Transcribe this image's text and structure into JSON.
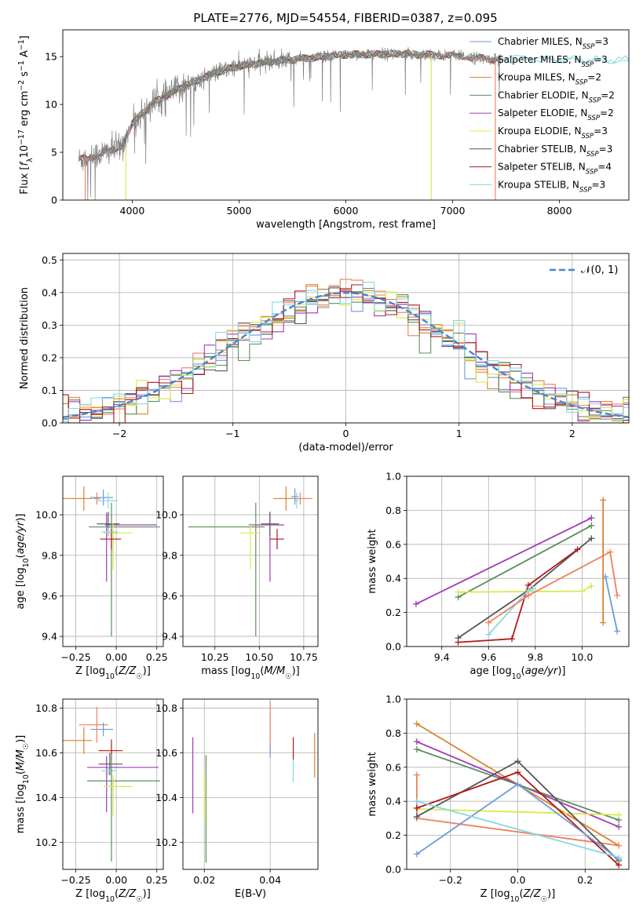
{
  "figure": {
    "title": "PLATE=2776, MJD=54554, FIBERID=0387, z=0.095"
  },
  "colors": {
    "Chabrier MILES": "#6f9bd8",
    "Salpeter MILES": "#f07f5a",
    "Kroupa MILES": "#d9822b",
    "Chabrier ELODIE": "#5b8f5b",
    "Salpeter ELODIE": "#a03ab8",
    "Kroupa ELODIE": "#d8e84a",
    "Chabrier STELIB": "#555555",
    "Salpeter STELIB": "#b01818",
    "Kroupa STELIB": "#86d8e6",
    "data": "#808080"
  },
  "chart_data": [
    {
      "id": "spectrum",
      "type": "line",
      "xlabel": "wavelength [Angstrom, rest frame]",
      "ylabel": "Flux [f_λ10^-17 erg cm^-2 s^-1 A^-1]",
      "xlim": [
        3350,
        8650
      ],
      "ylim": [
        0,
        17.8
      ],
      "xticks": [
        4000,
        5000,
        6000,
        7000,
        8000
      ],
      "yticks": [
        0,
        5,
        10,
        15
      ],
      "grid": false,
      "legend_position": "upper-right",
      "continuum": {
        "x": [
          3500,
          3700,
          3900,
          4000,
          4200,
          4500,
          4800,
          5000,
          5300,
          5600,
          6000,
          6500,
          7000,
          7400
        ],
        "y": [
          4.2,
          4.8,
          5.6,
          8.0,
          10.2,
          12.0,
          13.4,
          14.0,
          14.5,
          14.8,
          15.2,
          15.3,
          15.1,
          14.7
        ]
      },
      "series": [
        {
          "name": "Chabrier MILES",
          "label": "Chabrier MILES, N",
          "nssp": "=3",
          "model": "Chabrier MILES",
          "model_x_range": [
            3500,
            7450
          ]
        },
        {
          "name": "Salpeter MILES",
          "label": "Salpeter MILES, N",
          "nssp": "=3",
          "model": "Salpeter MILES",
          "model_x_range": [
            3500,
            7450
          ]
        },
        {
          "name": "Kroupa MILES",
          "label": "Kroupa MILES, N",
          "nssp": "=2",
          "model": "Kroupa MILES",
          "model_x_range": [
            3500,
            7450
          ]
        },
        {
          "name": "Chabrier ELODIE",
          "label": "Chabrier ELODIE, N",
          "nssp": "=2",
          "model": "Chabrier ELODIE",
          "model_x_range": [
            3900,
            6800
          ]
        },
        {
          "name": "Salpeter ELODIE",
          "label": "Salpeter ELODIE, N",
          "nssp": "=2",
          "model": "Salpeter ELODIE",
          "model_x_range": [
            3900,
            6800
          ]
        },
        {
          "name": "Kroupa ELODIE",
          "label": "Kroupa ELODIE, N",
          "nssp": "=3",
          "model": "Kroupa ELODIE",
          "model_x_range": [
            3900,
            6800
          ]
        },
        {
          "name": "Chabrier STELIB",
          "label": "Chabrier STELIB, N",
          "nssp": "=3",
          "model": "Chabrier STELIB",
          "model_x_range": [
            3500,
            7450
          ]
        },
        {
          "name": "Salpeter STELIB",
          "label": "Salpeter STELIB, N",
          "nssp": "=4",
          "model": "Salpeter STELIB",
          "model_x_range": [
            3500,
            7450
          ]
        },
        {
          "name": "Kroupa STELIB",
          "label": "Kroupa STELIB, N",
          "nssp": "=3",
          "model": "Kroupa STELIB",
          "model_x_range": [
            3500,
            8650
          ]
        }
      ],
      "legend_subscript": "SSP",
      "features": [
        {
          "x": 3560,
          "ymin": 0,
          "ymax": 4.5,
          "color": "#f07f5a"
        },
        {
          "x": 3940,
          "ymin": 0,
          "ymax": 5.5,
          "color": "#d8e84a"
        },
        {
          "x": 6800,
          "ymin": 0,
          "ymax": 15.0,
          "color": "#d8e84a"
        },
        {
          "x": 7400,
          "ymin": 0,
          "ymax": 14.7,
          "color": "#f07f5a"
        }
      ],
      "data_gap": [
        3970,
        4010
      ]
    },
    {
      "id": "residuals",
      "type": "histogram",
      "xlabel": "(data-model)/error",
      "ylabel": "Normed distribution",
      "xlim": [
        -2.5,
        2.5
      ],
      "ylim": [
        0,
        0.52
      ],
      "xticks": [
        -2,
        -1,
        0,
        1,
        2
      ],
      "yticks": [
        0.0,
        0.1,
        0.2,
        0.3,
        0.4,
        0.5
      ],
      "grid": true,
      "reference_curve": {
        "name": "N(0,1)",
        "label": "𝒩(0, 1)",
        "mean": 0,
        "sigma": 1,
        "style": "dashed",
        "color": "#4c84c8"
      },
      "bin_width": 0.1,
      "series_order": [
        "Chabrier MILES",
        "Salpeter MILES",
        "Kroupa MILES",
        "Chabrier ELODIE",
        "Salpeter ELODIE",
        "Kroupa ELODIE",
        "Chabrier STELIB",
        "Salpeter STELIB",
        "Kroupa STELIB"
      ]
    },
    {
      "id": "age_vs_Z",
      "type": "scatter",
      "xlabel": "Z [log10(Z/Z☉)]",
      "ylabel": "age  [log10(age/yr)]",
      "xlim": [
        -0.33,
        0.29
      ],
      "ylim": [
        9.35,
        10.19
      ],
      "xticks": [
        -0.25,
        0.0,
        0.25
      ],
      "yticks": [
        9.4,
        9.6,
        9.8,
        10.0
      ],
      "grid": true,
      "points": [
        {
          "series": "Kroupa MILES",
          "x": -0.2,
          "xerr": [
            0.13,
            0.05
          ],
          "y": 10.08,
          "yerr": [
            0.06,
            0.06
          ]
        },
        {
          "series": "Chabrier MILES",
          "x": -0.08,
          "xerr": [
            0.08,
            0.06
          ],
          "y": 10.085,
          "yerr": [
            0.04,
            0.04
          ]
        },
        {
          "series": "Salpeter MILES",
          "x": -0.12,
          "xerr": [
            0.02,
            0.02
          ],
          "y": 10.08,
          "yerr": [
            0.03,
            0.03
          ]
        },
        {
          "series": "Kroupa STELIB",
          "x": -0.05,
          "xerr": [
            0.07,
            0.06
          ],
          "y": 10.07,
          "yerr": [
            0.04,
            0.04
          ]
        },
        {
          "series": "Salpeter ELODIE",
          "x": -0.06,
          "xerr": [
            0.01,
            0.31
          ],
          "y": 9.95,
          "yerr": [
            0.28,
            0.06
          ]
        },
        {
          "series": "Chabrier STELIB",
          "x": -0.05,
          "xerr": [
            0.07,
            0.07
          ],
          "y": 9.955,
          "yerr": [
            0.06,
            0.06
          ]
        },
        {
          "series": "Chabrier ELODIE",
          "x": -0.03,
          "xerr": [
            0.14,
            0.3
          ],
          "y": 9.94,
          "yerr": [
            0.54,
            0.12
          ]
        },
        {
          "series": "Kroupa ELODIE",
          "x": -0.02,
          "xerr": [
            0.06,
            0.12
          ],
          "y": 9.91,
          "yerr": [
            0.18,
            0.05
          ]
        },
        {
          "series": "Salpeter STELIB",
          "x": -0.03,
          "xerr": [
            0.07,
            0.06
          ],
          "y": 9.88,
          "yerr": [
            0.05,
            0.05
          ]
        },
        {
          "series": "Kroupa STELIB",
          "x": -0.05,
          "xerr": [
            0.04,
            0.06
          ],
          "y": 9.915,
          "yerr": [
            0.02,
            0.02
          ]
        }
      ]
    },
    {
      "id": "age_vs_mass",
      "type": "scatter",
      "xlabel": "mass [log10(M/M☉)]",
      "ylabel": "",
      "xlim": [
        10.07,
        10.83
      ],
      "ylim": [
        9.35,
        10.19
      ],
      "xticks": [
        10.25,
        10.5,
        10.75
      ],
      "yticks": [
        9.4,
        9.6,
        9.8,
        10.0
      ],
      "grid": true,
      "points": [
        {
          "series": "Kroupa MILES",
          "x": 10.65,
          "xerr": [
            0.07,
            0.07
          ],
          "y": 10.08,
          "yerr": [
            0.06,
            0.06
          ]
        },
        {
          "series": "Salpeter MILES",
          "x": 10.73,
          "xerr": [
            0.05,
            0.07
          ],
          "y": 10.08,
          "yerr": [
            0.03,
            0.03
          ]
        },
        {
          "series": "Chabrier MILES",
          "x": 10.7,
          "xerr": [
            0.02,
            0.02
          ],
          "y": 10.09,
          "yerr": [
            0.04,
            0.04
          ]
        },
        {
          "series": "Kroupa STELIB",
          "x": 10.71,
          "xerr": [
            0.01,
            0.01
          ],
          "y": 10.07,
          "yerr": [
            0.04,
            0.04
          ]
        },
        {
          "series": "Salpeter ELODIE",
          "x": 10.56,
          "xerr": [
            0.12,
            0.08
          ],
          "y": 9.95,
          "yerr": [
            0.28,
            0.06
          ]
        },
        {
          "series": "Chabrier STELIB",
          "x": 10.56,
          "xerr": [
            0.05,
            0.05
          ],
          "y": 9.955,
          "yerr": [
            0.06,
            0.06
          ]
        },
        {
          "series": "Chabrier ELODIE",
          "x": 10.48,
          "xerr": [
            0.38,
            0.05
          ],
          "y": 9.94,
          "yerr": [
            0.54,
            0.12
          ]
        },
        {
          "series": "Kroupa ELODIE",
          "x": 10.45,
          "xerr": [
            0.06,
            0.06
          ],
          "y": 9.91,
          "yerr": [
            0.18,
            0.05
          ]
        },
        {
          "series": "Salpeter STELIB",
          "x": 10.6,
          "xerr": [
            0.04,
            0.04
          ],
          "y": 9.88,
          "yerr": [
            0.05,
            0.05
          ]
        }
      ]
    },
    {
      "id": "weight_vs_age",
      "type": "line",
      "xlabel": "age  [log10(age/yr)]",
      "ylabel": "mass weight",
      "xlim": [
        9.25,
        10.2
      ],
      "ylim": [
        0,
        1.0
      ],
      "xticks": [
        9.4,
        9.6,
        9.8,
        10.0
      ],
      "yticks": [
        0.0,
        0.2,
        0.4,
        0.6,
        0.8,
        1.0
      ],
      "grid": true,
      "series": [
        {
          "name": "Salpeter ELODIE",
          "x": [
            9.29,
            10.04
          ],
          "y": [
            0.25,
            0.755
          ]
        },
        {
          "name": "Chabrier ELODIE",
          "x": [
            9.47,
            10.04
          ],
          "y": [
            0.29,
            0.71
          ]
        },
        {
          "name": "Kroupa ELODIE",
          "x": [
            9.47,
            10.0,
            10.04
          ],
          "y": [
            0.32,
            0.325,
            0.355
          ]
        },
        {
          "name": "Chabrier STELIB",
          "x": [
            9.47,
            9.77,
            10.04
          ],
          "y": [
            0.05,
            0.33,
            0.635
          ]
        },
        {
          "name": "Salpeter STELIB",
          "x": [
            9.47,
            9.7,
            9.77,
            9.98
          ],
          "y": [
            0.025,
            0.045,
            0.36,
            0.57
          ]
        },
        {
          "name": "Kroupa STELIB",
          "x": [
            9.6,
            9.77,
            9.79
          ],
          "y": [
            0.07,
            0.33,
            0.34
          ]
        },
        {
          "name": "Salpeter MILES",
          "x": [
            9.6,
            9.77,
            10.12,
            10.15
          ],
          "y": [
            0.14,
            0.3,
            0.555,
            0.3
          ]
        },
        {
          "name": "Chabrier MILES",
          "x": [
            10.1,
            10.15
          ],
          "y": [
            0.41,
            0.09
          ]
        },
        {
          "name": "Kroupa MILES",
          "x": [
            10.09,
            10.09
          ],
          "y": [
            0.14,
            0.86
          ]
        }
      ]
    },
    {
      "id": "mass_vs_Z",
      "type": "scatter",
      "xlabel": "Z [log10(Z/Z☉)]",
      "ylabel": "mass [log10(M/M☉)]",
      "xlim": [
        -0.33,
        0.29
      ],
      "ylim": [
        10.08,
        10.84
      ],
      "xticks": [
        -0.25,
        0.0,
        0.25
      ],
      "yticks": [
        10.2,
        10.4,
        10.6,
        10.8
      ],
      "grid": true,
      "points": [
        {
          "series": "Salpeter MILES",
          "x": -0.12,
          "xerr": [
            0.11,
            0.07
          ],
          "y": 10.725,
          "yerr": [
            0.08,
            0.08
          ]
        },
        {
          "series": "Chabrier MILES",
          "x": -0.08,
          "xerr": [
            0.08,
            0.06
          ],
          "y": 10.705,
          "yerr": [
            0.03,
            0.03
          ]
        },
        {
          "series": "Kroupa MILES",
          "x": -0.2,
          "xerr": [
            0.13,
            0.05
          ],
          "y": 10.655,
          "yerr": [
            0.06,
            0.06
          ]
        },
        {
          "series": "Salpeter STELIB",
          "x": -0.03,
          "xerr": [
            0.08,
            0.07
          ],
          "y": 10.61,
          "yerr": [
            0.05,
            0.05
          ]
        },
        {
          "series": "Chabrier STELIB",
          "x": -0.04,
          "xerr": [
            0.07,
            0.08
          ],
          "y": 10.55,
          "yerr": [
            0.05,
            0.05
          ]
        },
        {
          "series": "Salpeter ELODIE",
          "x": -0.06,
          "xerr": [
            0.12,
            0.32
          ],
          "y": 10.535,
          "yerr": [
            0.2,
            0.05
          ]
        },
        {
          "series": "Kroupa STELIB",
          "x": -0.05,
          "xerr": [
            0.04,
            0.05
          ],
          "y": 10.52,
          "yerr": [
            0.02,
            0.02
          ]
        },
        {
          "series": "Chabrier ELODIE",
          "x": -0.03,
          "xerr": [
            0.15,
            0.3
          ],
          "y": 10.475,
          "yerr": [
            0.36,
            0.12
          ]
        },
        {
          "series": "Kroupa ELODIE",
          "x": -0.02,
          "xerr": [
            0.06,
            0.12
          ],
          "y": 10.45,
          "yerr": [
            0.13,
            0.05
          ]
        }
      ]
    },
    {
      "id": "mass_vs_EBV",
      "type": "scatter",
      "xlabel": "E(B-V)",
      "ylabel": "",
      "xlim": [
        0.0135,
        0.0545
      ],
      "ylim": [
        10.08,
        10.84
      ],
      "xticks": [
        0.02,
        0.04
      ],
      "yticks": [
        10.2,
        10.4,
        10.6,
        10.8
      ],
      "grid": true,
      "points": [
        {
          "series": "Salpeter ELODIE",
          "x": 0.0165,
          "y": 10.5,
          "yerr": [
            0.17,
            0.17
          ]
        },
        {
          "series": "Kroupa ELODIE",
          "x": 0.02,
          "y": 10.4,
          "yerr": [
            0.11,
            0.11
          ]
        },
        {
          "series": "Chabrier ELODIE",
          "x": 0.0205,
          "y": 10.36,
          "yerr": [
            0.25,
            0.23
          ]
        },
        {
          "series": "Salpeter MILES",
          "x": 0.04,
          "y": 10.71,
          "yerr": [
            0.1,
            0.12
          ]
        },
        {
          "series": "Chabrier MILES",
          "x": 0.04,
          "y": 10.61,
          "yerr": [
            0.03,
            0.03
          ]
        },
        {
          "series": "Salpeter STELIB",
          "x": 0.047,
          "y": 10.62,
          "yerr": [
            0.05,
            0.05
          ]
        },
        {
          "series": "Kroupa STELIB",
          "x": 0.047,
          "y": 10.52,
          "yerr": [
            0.05,
            0.05
          ]
        },
        {
          "series": "Kroupa MILES",
          "x": 0.0535,
          "y": 10.59,
          "yerr": [
            0.1,
            0.1
          ]
        }
      ]
    },
    {
      "id": "weight_vs_Z",
      "type": "line",
      "xlabel": "Z [log10(Z/Z☉)]",
      "ylabel": "mass weight",
      "xlim": [
        -0.33,
        0.33
      ],
      "ylim": [
        0,
        1.0
      ],
      "xticks": [
        -0.2,
        0.0,
        0.2
      ],
      "yticks": [
        0.0,
        0.2,
        0.4,
        0.6,
        0.8,
        1.0
      ],
      "grid": true,
      "series": [
        {
          "name": "Kroupa MILES",
          "x": [
            -0.3,
            0.3
          ],
          "y": [
            0.855,
            0.14
          ]
        },
        {
          "name": "Salpeter ELODIE",
          "x": [
            -0.3,
            0.3
          ],
          "y": [
            0.75,
            0.25
          ]
        },
        {
          "name": "Chabrier ELODIE",
          "x": [
            -0.3,
            0.3
          ],
          "y": [
            0.705,
            0.29
          ]
        },
        {
          "name": "Kroupa ELODIE",
          "x": [
            -0.3,
            0.3
          ],
          "y": [
            0.355,
            0.32
          ]
        },
        {
          "name": "Salpeter MILES",
          "x": [
            -0.3,
            -0.3,
            0.3
          ],
          "y": [
            0.555,
            0.3,
            0.14
          ]
        },
        {
          "name": "Chabrier STELIB",
          "x": [
            -0.3,
            0.0,
            0.3
          ],
          "y": [
            0.31,
            0.635,
            0.05
          ]
        },
        {
          "name": "Salpeter STELIB",
          "x": [
            -0.3,
            0.0,
            0.3
          ],
          "y": [
            0.36,
            0.57,
            0.025
          ]
        },
        {
          "name": "Chabrier MILES",
          "x": [
            -0.3,
            0.0,
            0.3
          ],
          "y": [
            0.09,
            0.5,
            0.06
          ]
        },
        {
          "name": "Kroupa STELIB",
          "x": [
            -0.3,
            0.3
          ],
          "y": [
            0.4,
            0.07
          ]
        }
      ]
    }
  ]
}
